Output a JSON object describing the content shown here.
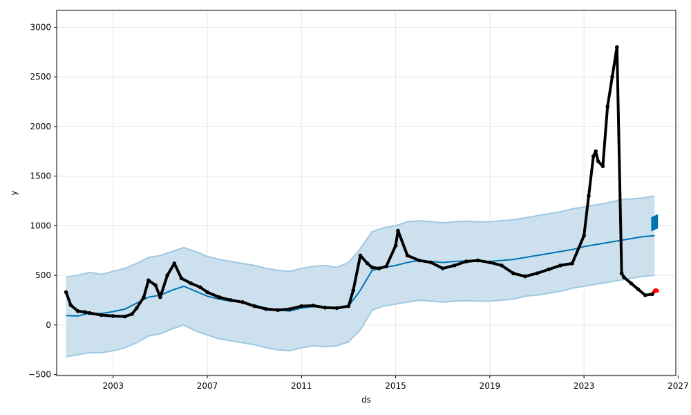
{
  "chart_data": {
    "type": "line",
    "title": "",
    "xlabel": "ds",
    "ylabel": "y",
    "xlim": [
      2000.6,
      2026.9
    ],
    "ylim": [
      -510,
      3170
    ],
    "grid": true,
    "x_ticks": [
      2003,
      2007,
      2011,
      2015,
      2019,
      2023,
      2027
    ],
    "x_tick_labels": [
      "2003",
      "2007",
      "2011",
      "2015",
      "2019",
      "2023",
      "2027"
    ],
    "y_ticks": [
      -500,
      0,
      500,
      1000,
      1500,
      2000,
      2500,
      3000
    ],
    "y_tick_labels": [
      "−500",
      "0",
      "500",
      "1000",
      "1500",
      "2000",
      "2500",
      "3000"
    ],
    "colors": {
      "forecast_line": "#0072B2",
      "interval_fill": "#cce0ee",
      "interval_edge": "#9ec9e2",
      "observed_points": "#000000",
      "highlight_points": "#ff0000",
      "grid": "#e6e6e6",
      "axes": "#000000"
    },
    "series": [
      {
        "kind": "forecast",
        "x": [
          2001.0,
          2001.5,
          2002.0,
          2002.5,
          2003.0,
          2003.5,
          2004.0,
          2004.5,
          2005.0,
          2005.5,
          2006.0,
          2006.5,
          2007.0,
          2007.5,
          2008.0,
          2008.5,
          2009.0,
          2009.5,
          2010.0,
          2010.5,
          2011.0,
          2011.5,
          2012.0,
          2012.5,
          2013.0,
          2013.5,
          2014.0,
          2014.5,
          2015.0,
          2015.5,
          2016.0,
          2016.5,
          2017.0,
          2017.5,
          2018.0,
          2018.5,
          2019.0,
          2019.5,
          2020.0,
          2020.5,
          2021.0,
          2021.5,
          2022.0,
          2022.5,
          2023.0,
          2023.5,
          2024.0,
          2024.5,
          2025.0,
          2025.5,
          2026.0
        ],
        "y": [
          95,
          90,
          120,
          115,
          135,
          160,
          220,
          280,
          300,
          350,
          390,
          340,
          290,
          260,
          240,
          230,
          200,
          170,
          150,
          140,
          170,
          185,
          180,
          175,
          190,
          350,
          550,
          580,
          600,
          630,
          650,
          640,
          630,
          640,
          645,
          640,
          640,
          650,
          660,
          680,
          700,
          720,
          740,
          760,
          790,
          810,
          830,
          850,
          870,
          890,
          900
        ]
      },
      {
        "kind": "interval",
        "x": [
          2001.0,
          2001.5,
          2002.0,
          2002.5,
          2003.0,
          2003.5,
          2004.0,
          2004.5,
          2005.0,
          2005.5,
          2006.0,
          2006.5,
          2007.0,
          2007.5,
          2008.0,
          2008.5,
          2009.0,
          2009.5,
          2010.0,
          2010.5,
          2011.0,
          2011.5,
          2012.0,
          2012.5,
          2013.0,
          2013.5,
          2014.0,
          2014.5,
          2015.0,
          2015.5,
          2016.0,
          2016.5,
          2017.0,
          2017.5,
          2018.0,
          2018.5,
          2019.0,
          2019.5,
          2020.0,
          2020.5,
          2021.0,
          2021.5,
          2022.0,
          2022.5,
          2023.0,
          2023.5,
          2024.0,
          2024.5,
          2025.0,
          2025.5,
          2026.0
        ],
        "upper": [
          480,
          500,
          530,
          510,
          540,
          570,
          620,
          680,
          700,
          740,
          780,
          740,
          690,
          660,
          640,
          620,
          600,
          570,
          550,
          540,
          570,
          590,
          600,
          580,
          630,
          770,
          940,
          980,
          1000,
          1040,
          1050,
          1040,
          1030,
          1040,
          1045,
          1040,
          1040,
          1050,
          1060,
          1080,
          1100,
          1120,
          1140,
          1170,
          1190,
          1210,
          1230,
          1260,
          1270,
          1280,
          1300
        ],
        "lower": [
          -320,
          -300,
          -280,
          -280,
          -260,
          -230,
          -180,
          -110,
          -90,
          -40,
          0,
          -60,
          -100,
          -140,
          -160,
          -180,
          -200,
          -230,
          -250,
          -260,
          -230,
          -210,
          -220,
          -210,
          -170,
          -50,
          150,
          190,
          210,
          230,
          250,
          240,
          230,
          240,
          245,
          240,
          240,
          250,
          260,
          290,
          300,
          320,
          340,
          370,
          390,
          410,
          430,
          450,
          470,
          490,
          500
        ]
      },
      {
        "kind": "observed",
        "x": [
          2001.0,
          2001.2,
          2001.5,
          2001.8,
          2002.0,
          2002.5,
          2003.0,
          2003.5,
          2003.8,
          2004.0,
          2004.3,
          2004.5,
          2004.8,
          2005.0,
          2005.3,
          2005.6,
          2005.9,
          2006.3,
          2006.7,
          2007.0,
          2007.5,
          2008.0,
          2008.5,
          2009.0,
          2009.5,
          2010.0,
          2010.5,
          2011.0,
          2011.5,
          2012.0,
          2012.5,
          2013.0,
          2013.2,
          2013.5,
          2013.8,
          2014.0,
          2014.3,
          2014.6,
          2015.0,
          2015.1,
          2015.5,
          2016.0,
          2016.5,
          2017.0,
          2017.5,
          2018.0,
          2018.5,
          2019.0,
          2019.5,
          2020.0,
          2020.5,
          2021.0,
          2021.5,
          2022.0,
          2022.5,
          2023.0,
          2023.2,
          2023.4,
          2023.5,
          2023.6,
          2023.8,
          2024.0,
          2024.2,
          2024.4,
          2024.6,
          2024.7,
          2025.0,
          2025.3,
          2025.6,
          2025.9,
          2026.0
        ],
        "y": [
          330,
          200,
          140,
          130,
          120,
          100,
          90,
          85,
          110,
          170,
          280,
          450,
          400,
          280,
          500,
          620,
          470,
          420,
          380,
          330,
          280,
          250,
          230,
          190,
          160,
          150,
          160,
          190,
          195,
          175,
          170,
          190,
          350,
          700,
          620,
          580,
          570,
          590,
          800,
          950,
          700,
          650,
          630,
          570,
          600,
          640,
          650,
          630,
          600,
          520,
          490,
          520,
          560,
          600,
          620,
          900,
          1300,
          1700,
          1750,
          1650,
          1600,
          2200,
          2500,
          2800,
          520,
          480,
          420,
          360,
          300,
          310,
          340
        ]
      },
      {
        "kind": "highlight",
        "x": [
          2026.0,
          2026.05,
          2026.1
        ],
        "y": [
          340,
          350,
          345
        ]
      },
      {
        "kind": "future_band",
        "x": [
          2025.9,
          2026.1
        ],
        "upper": [
          1080,
          1100
        ],
        "lower": [
          960,
          980
        ]
      }
    ]
  }
}
